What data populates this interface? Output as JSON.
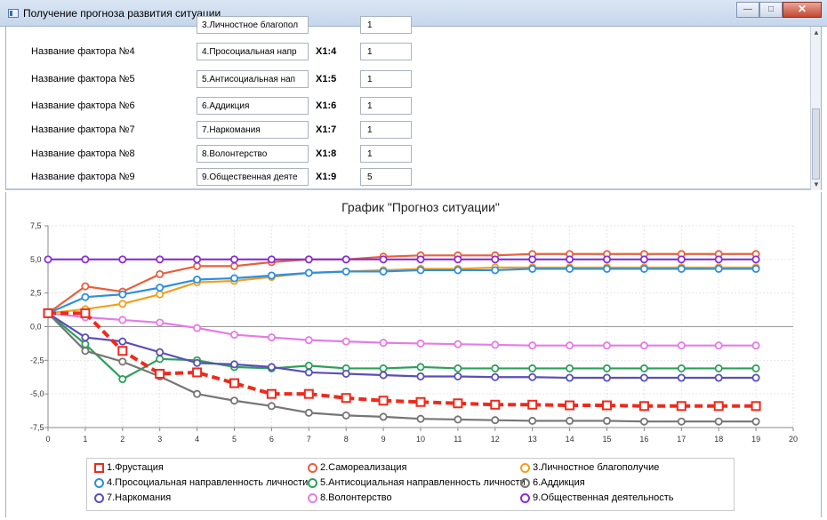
{
  "window": {
    "title": "Получение прогноза развития ситуации",
    "buttons": {
      "minimize": "—",
      "maximize": "□",
      "close": "✕"
    }
  },
  "factors": [
    {
      "label": "Название фактора №4",
      "name": "4.Просоциальная напр",
      "x": "X1:4",
      "value": "1"
    },
    {
      "label": "Название фактора №5",
      "name": "5.Антисоциальная нап",
      "x": "X1:5",
      "value": "1"
    },
    {
      "label": "Название фактора №6",
      "name": "6.Аддикция",
      "x": "X1:6",
      "value": "1"
    },
    {
      "label": "Название фактора №7",
      "name": "7.Наркомания",
      "x": "X1:7",
      "value": "1"
    },
    {
      "label": "Название фактора №8",
      "name": "8.Волонтерство",
      "x": "X1:8",
      "value": "1"
    },
    {
      "label": "Название фактора №9",
      "name": "9.Общественная деяте",
      "x": "X1:9",
      "value": "5"
    }
  ],
  "partial_row": {
    "name": "3.Личностное благопол",
    "value": "1"
  },
  "chart_data": {
    "type": "line",
    "title": "График \"Прогноз ситуации\"",
    "xlim": [
      0,
      20
    ],
    "ylim": [
      -7.5,
      7.5
    ],
    "xticks": [
      0,
      1,
      2,
      3,
      4,
      5,
      6,
      7,
      8,
      9,
      10,
      11,
      12,
      13,
      14,
      15,
      16,
      17,
      18,
      19,
      20
    ],
    "yticks": [
      7.5,
      5.0,
      2.5,
      0.0,
      -2.5,
      -5.0,
      -7.5
    ],
    "ytick_labels": [
      "7,5",
      "5,0",
      "2,5",
      "0,0",
      "-2,5",
      "-5,0",
      "-7,5"
    ],
    "grid": true,
    "legend_position": "bottom",
    "x": [
      0,
      1,
      2,
      3,
      4,
      5,
      6,
      7,
      8,
      9,
      10,
      11,
      12,
      13,
      14,
      15,
      16,
      17,
      18,
      19
    ],
    "series": [
      {
        "name": "1.Фрустация",
        "color": "#ee2a1c",
        "marker": "square",
        "dashed": true,
        "values": [
          1.0,
          1.0,
          -1.8,
          -3.5,
          -3.4,
          -4.2,
          -5.0,
          -5.0,
          -5.3,
          -5.5,
          -5.6,
          -5.7,
          -5.8,
          -5.8,
          -5.85,
          -5.85,
          -5.9,
          -5.9,
          -5.9,
          -5.9
        ]
      },
      {
        "name": "2.Самореализация",
        "color": "#e8603c",
        "marker": "circle",
        "values": [
          1.0,
          3.0,
          2.6,
          3.9,
          4.5,
          4.5,
          4.8,
          5.0,
          5.0,
          5.2,
          5.3,
          5.3,
          5.3,
          5.4,
          5.4,
          5.4,
          5.4,
          5.4,
          5.4,
          5.4
        ]
      },
      {
        "name": "3.Личностное благополучие",
        "color": "#f2a01a",
        "marker": "circle",
        "values": [
          1.0,
          1.3,
          1.7,
          2.4,
          3.3,
          3.4,
          3.7,
          4.0,
          4.1,
          4.2,
          4.3,
          4.3,
          4.4,
          4.4,
          4.4,
          4.4,
          4.4,
          4.4,
          4.4,
          4.4
        ]
      },
      {
        "name": "4.Просоциальная направленность личности",
        "color": "#2d8fe0",
        "marker": "circle",
        "values": [
          1.0,
          2.2,
          2.4,
          2.9,
          3.5,
          3.6,
          3.8,
          4.0,
          4.1,
          4.1,
          4.2,
          4.2,
          4.2,
          4.3,
          4.3,
          4.3,
          4.3,
          4.3,
          4.3,
          4.3
        ]
      },
      {
        "name": "5.Антисоциальная направленность личности",
        "color": "#2ea05a",
        "marker": "circle",
        "values": [
          1.0,
          -1.3,
          -3.9,
          -2.4,
          -2.5,
          -3.0,
          -3.1,
          -2.9,
          -3.1,
          -3.1,
          -3.0,
          -3.1,
          -3.1,
          -3.1,
          -3.1,
          -3.1,
          -3.1,
          -3.1,
          -3.1,
          -3.1
        ]
      },
      {
        "name": "6.Аддикция",
        "color": "#757575",
        "marker": "circle",
        "values": [
          1.0,
          -1.8,
          -2.6,
          -3.7,
          -5.0,
          -5.5,
          -5.9,
          -6.4,
          -6.6,
          -6.7,
          -6.85,
          -6.9,
          -6.95,
          -7.0,
          -7.0,
          -7.0,
          -7.05,
          -7.05,
          -7.05,
          -7.05
        ]
      },
      {
        "name": "7.Наркомания",
        "color": "#5a4fb8",
        "marker": "circle",
        "values": [
          1.0,
          -0.8,
          -1.1,
          -1.9,
          -2.7,
          -2.8,
          -3.0,
          -3.4,
          -3.5,
          -3.6,
          -3.7,
          -3.7,
          -3.75,
          -3.75,
          -3.8,
          -3.8,
          -3.8,
          -3.8,
          -3.8,
          -3.8
        ]
      },
      {
        "name": "8.Волонтерство",
        "color": "#e57ce6",
        "marker": "circle",
        "values": [
          1.0,
          0.7,
          0.5,
          0.3,
          -0.1,
          -0.6,
          -0.8,
          -1.0,
          -1.1,
          -1.2,
          -1.25,
          -1.3,
          -1.35,
          -1.4,
          -1.4,
          -1.4,
          -1.4,
          -1.4,
          -1.4,
          -1.4
        ]
      },
      {
        "name": "9.Общественная деятельность",
        "color": "#8a2fd6",
        "marker": "circle",
        "values": [
          5.0,
          5.0,
          5.0,
          5.0,
          5.0,
          5.0,
          5.0,
          5.0,
          5.0,
          5.0,
          5.0,
          5.0,
          5.0,
          5.0,
          5.0,
          5.0,
          5.0,
          5.0,
          5.0,
          5.0
        ]
      }
    ]
  }
}
